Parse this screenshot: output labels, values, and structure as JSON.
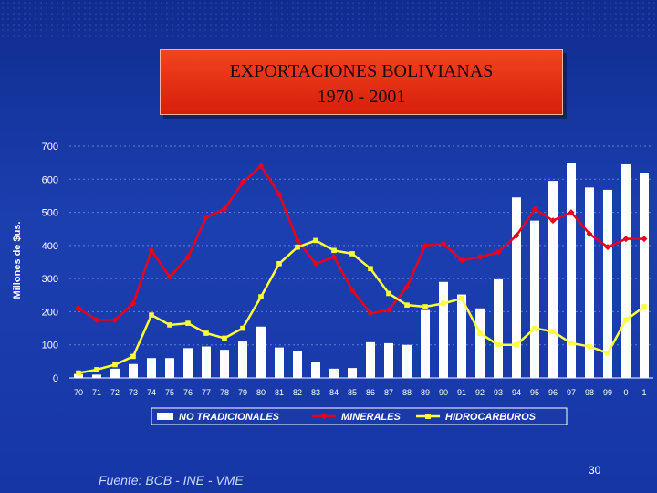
{
  "slide": {
    "title_line1": "EXPORTACIONES BOLIVIANAS",
    "title_line2": "1970 - 2001",
    "source": "Fuente: BCB - INE - VME",
    "page_number": "30"
  },
  "chart_data": {
    "type": "bar+line",
    "ylabel": "Millones de $us.",
    "ylim": [
      0,
      700
    ],
    "yticks": [
      0,
      100,
      200,
      300,
      400,
      500,
      600,
      700
    ],
    "grid": true,
    "legend_position": "bottom",
    "categories": [
      "70",
      "71",
      "72",
      "73",
      "74",
      "75",
      "76",
      "77",
      "78",
      "79",
      "80",
      "81",
      "82",
      "83",
      "84",
      "85",
      "86",
      "87",
      "88",
      "89",
      "90",
      "91",
      "92",
      "93",
      "94",
      "95",
      "96",
      "97",
      "98",
      "99",
      "0",
      "1"
    ],
    "series": [
      {
        "name": "NO TRADICIONALES",
        "kind": "bar",
        "color": "#ffffff",
        "values": [
          12,
          10,
          28,
          42,
          60,
          60,
          90,
          95,
          85,
          110,
          155,
          92,
          80,
          48,
          28,
          30,
          108,
          105,
          100,
          205,
          290,
          252,
          210,
          298,
          545,
          475,
          595,
          650,
          575,
          568,
          645,
          620
        ]
      },
      {
        "name": "MINERALES",
        "kind": "line",
        "color": "#e8001c",
        "marker": "diamond",
        "values": [
          210,
          175,
          175,
          225,
          385,
          305,
          365,
          485,
          510,
          590,
          640,
          555,
          415,
          345,
          365,
          265,
          195,
          205,
          275,
          400,
          405,
          355,
          365,
          380,
          430,
          510,
          475,
          500,
          435,
          395,
          420,
          420
        ]
      },
      {
        "name": "HIDROCARBUROS",
        "kind": "line",
        "color": "#ffff3c",
        "marker": "square",
        "values": [
          15,
          25,
          40,
          65,
          190,
          160,
          165,
          135,
          120,
          150,
          245,
          345,
          395,
          415,
          385,
          375,
          330,
          255,
          220,
          215,
          225,
          240,
          135,
          100,
          100,
          150,
          140,
          105,
          95,
          75,
          175,
          215
        ]
      }
    ]
  }
}
